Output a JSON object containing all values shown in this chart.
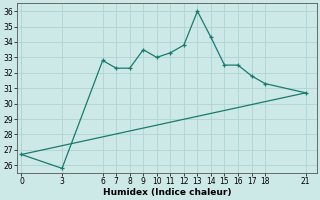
{
  "xlabel": "Humidex (Indice chaleur)",
  "line_color": "#1a7a6e",
  "bg_color": "#cce9e7",
  "grid_color": "#aed4d1",
  "x_ticks": [
    0,
    3,
    6,
    7,
    8,
    9,
    10,
    11,
    12,
    13,
    14,
    15,
    16,
    17,
    18,
    21
  ],
  "y_ticks": [
    26,
    27,
    28,
    29,
    30,
    31,
    32,
    33,
    34,
    35,
    36
  ],
  "ylim": [
    25.5,
    36.5
  ],
  "xlim": [
    -0.3,
    21.8
  ],
  "curve_x": [
    0,
    3,
    6,
    7,
    8,
    9,
    10,
    11,
    12,
    13,
    14,
    15,
    16,
    17,
    18,
    21
  ],
  "curve_y": [
    26.7,
    25.8,
    32.8,
    32.3,
    32.3,
    33.5,
    33.0,
    33.3,
    33.8,
    36.0,
    34.3,
    32.5,
    32.5,
    31.8,
    31.3,
    30.7
  ],
  "line2_x": [
    0,
    21
  ],
  "line2_y": [
    26.7,
    30.7
  ],
  "tick_fontsize": 5.5,
  "xlabel_fontsize": 6.5
}
